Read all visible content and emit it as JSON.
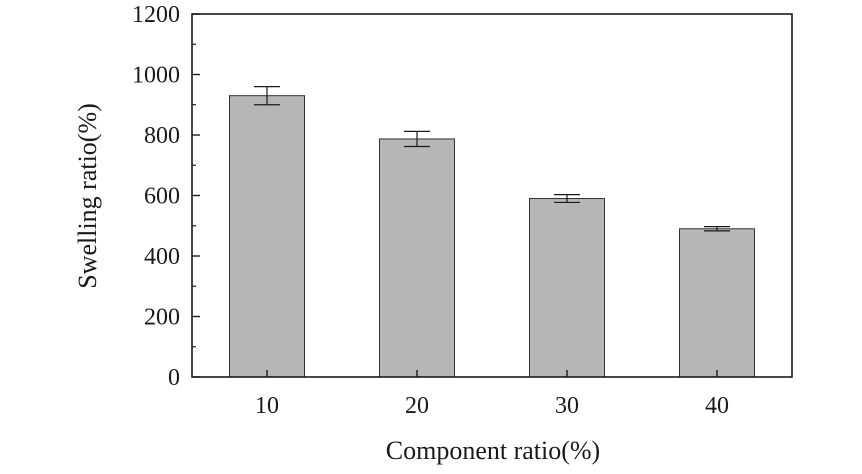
{
  "chart_data": {
    "type": "bar",
    "title": "",
    "xlabel": "Component ratio(%)",
    "ylabel": "Swelling ratio(%)",
    "categories": [
      "10",
      "20",
      "30",
      "40"
    ],
    "values": [
      930,
      787,
      590,
      490
    ],
    "errors": [
      30,
      25,
      13,
      7
    ],
    "ylim": [
      0,
      1200
    ],
    "yticks": [
      0,
      200,
      400,
      600,
      800,
      1000,
      1200
    ],
    "ytick_labels": [
      "0",
      "200",
      "400",
      "600",
      "800",
      "1000",
      "1200"
    ],
    "grid": false,
    "legend": "none",
    "colors": {
      "bar": "#b6b6b6",
      "bar_edge": "#333333",
      "axis": "#1a1a1a",
      "error": "#1a1a1a"
    }
  }
}
